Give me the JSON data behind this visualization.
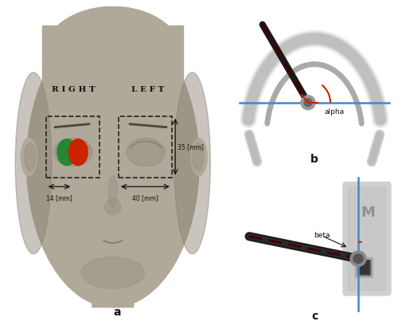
{
  "fig_width": 5.0,
  "fig_height": 4.18,
  "dpi": 100,
  "bg_color": "#ffffff",
  "panel_a_label": "a",
  "panel_b_label": "b",
  "panel_c_label": "c",
  "right_label": "R I G H T",
  "left_label": "L E F T",
  "dim_35": "35 [mm]",
  "dim_40": "40 [mm]",
  "dim_14": "14 [mm]",
  "alpha_label": "alpha",
  "beta_label": "beta",
  "M_label": "M",
  "face_skin_color": "#b0a898",
  "face_shadow_color": "#888070",
  "orbit_box_color": "#222222",
  "red_circle_color": "#cc2200",
  "green_circle_color": "#228833",
  "blue_line_color": "#4488cc",
  "red_dashed_color": "#cc2200",
  "bg_b_color": "#b8c8d8",
  "bg_c_color": "#b8c8d8",
  "annotation_fs": 7,
  "label_fs": 9,
  "panel_label_fs": 10
}
